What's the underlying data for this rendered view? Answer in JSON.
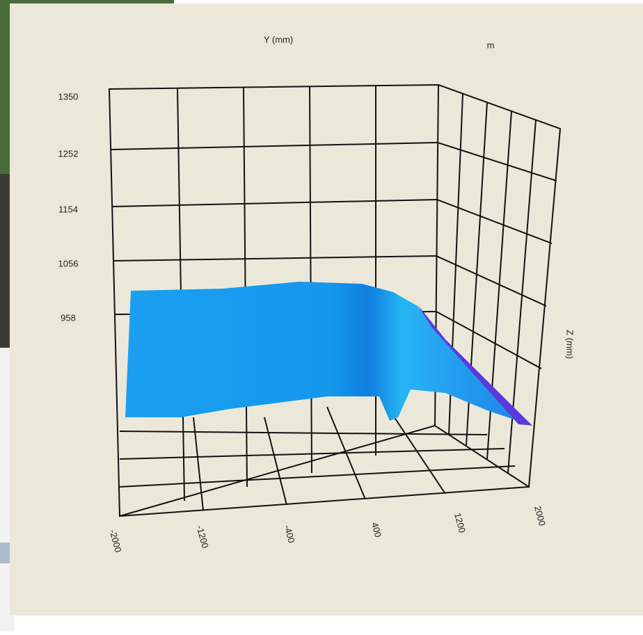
{
  "axis_title_y": "Y (mm)",
  "axis_title_corner": "m",
  "axis_title_z": "Z (mm)",
  "left_ticks": [
    "1350",
    "1252",
    "1154",
    "1056",
    "958"
  ],
  "bottom_ticks": [
    "-2000",
    "-1200",
    "-400",
    "400",
    "1200",
    "2000"
  ]
}
